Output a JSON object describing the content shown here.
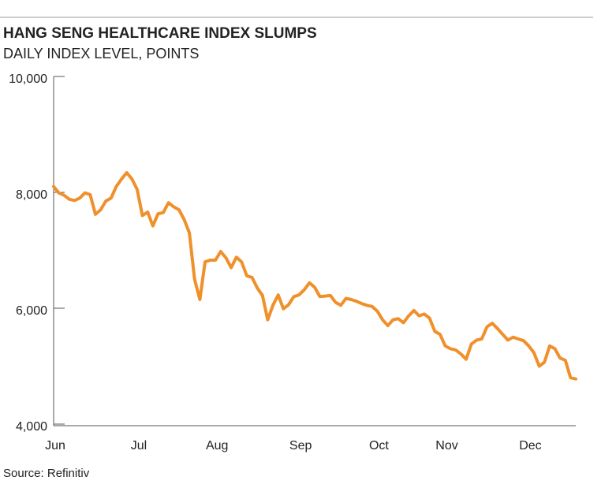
{
  "chart_data": {
    "type": "line",
    "title": "HANG SENG HEALTHCARE INDEX SLUMPS",
    "subtitle": "DAILY INDEX LEVEL, POINTS",
    "source": "Source: Refinitiv",
    "categories": [
      "Jun",
      null,
      null,
      null,
      null,
      null,
      null,
      null,
      null,
      null,
      null,
      null,
      null,
      null,
      null,
      null,
      "Jul",
      null,
      null,
      null,
      null,
      null,
      null,
      null,
      null,
      null,
      null,
      null,
      null,
      null,
      null,
      "Aug",
      null,
      null,
      null,
      null,
      null,
      null,
      null,
      null,
      null,
      null,
      null,
      null,
      null,
      null,
      null,
      "Sep",
      null,
      null,
      null,
      null,
      null,
      null,
      null,
      null,
      null,
      null,
      null,
      null,
      null,
      null,
      "Oct",
      null,
      null,
      null,
      null,
      null,
      null,
      null,
      null,
      null,
      null,
      null,
      null,
      "Nov",
      null,
      null,
      null,
      null,
      null,
      null,
      null,
      null,
      null,
      null,
      null,
      null,
      null,
      null,
      null,
      "Dec",
      null,
      null,
      null,
      null,
      null,
      null,
      null,
      null,
      null
    ],
    "series": [
      {
        "name": "Hang Seng Healthcare Index",
        "color": "#f0902b",
        "values": [
          8100,
          7990,
          7950,
          7880,
          7860,
          7900,
          7990,
          7960,
          7620,
          7700,
          7850,
          7900,
          8100,
          8230,
          8340,
          8230,
          8050,
          7600,
          7660,
          7420,
          7630,
          7650,
          7820,
          7750,
          7700,
          7530,
          7300,
          6500,
          6150,
          6800,
          6830,
          6830,
          6980,
          6870,
          6700,
          6880,
          6800,
          6560,
          6530,
          6350,
          6220,
          5800,
          6050,
          6230,
          5990,
          6060,
          6200,
          6230,
          6320,
          6440,
          6360,
          6200,
          6210,
          6220,
          6100,
          6050,
          6170,
          6150,
          6120,
          6080,
          6050,
          6030,
          5950,
          5800,
          5700,
          5800,
          5820,
          5750,
          5870,
          5960,
          5870,
          5900,
          5830,
          5600,
          5550,
          5350,
          5300,
          5280,
          5210,
          5120,
          5380,
          5450,
          5470,
          5680,
          5740,
          5650,
          5550,
          5450,
          5500,
          5470,
          5440,
          5350,
          5230,
          5000,
          5070,
          5350,
          5300,
          5140,
          5100,
          4800,
          4780
        ]
      }
    ],
    "ylim": [
      4000,
      10000
    ],
    "yticks": [
      {
        "value": 4000,
        "label": "4,000"
      },
      {
        "value": 6000,
        "label": "6,000"
      },
      {
        "value": 8000,
        "label": "8,000"
      },
      {
        "value": 10000,
        "label": "10,000"
      }
    ]
  }
}
